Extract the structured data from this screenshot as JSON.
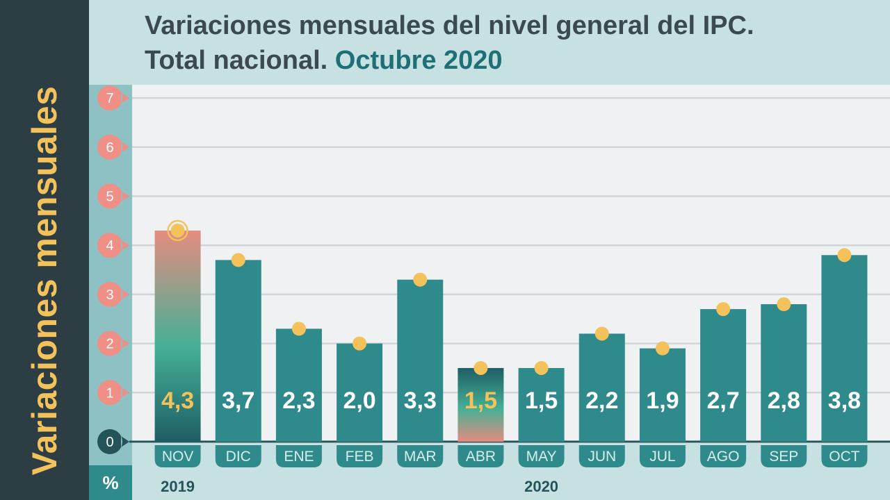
{
  "title": {
    "line1": "Variaciones mensuales del nivel general del IPC.",
    "line2_prefix": "Total nacional.",
    "line2_highlight": "Octubre 2020"
  },
  "side_label": "Variaciones mensuales",
  "unit": "%",
  "colors": {
    "bar": "#2f8a8c",
    "dot": "#f3c25b",
    "tick_bubble": "#ef8f86",
    "highlight_start": "#e58c80",
    "highlight_mid": "#45b095",
    "highlight_end": "#1e5e66"
  },
  "chart_data": {
    "type": "bar",
    "title": "Variaciones mensuales del nivel general del IPC. Total nacional. Octubre 2020",
    "ylabel": "Variaciones mensuales",
    "unit": "%",
    "ylim": [
      0,
      7
    ],
    "yticks": [
      "0",
      "1",
      "2",
      "3",
      "4",
      "5",
      "6",
      "7"
    ],
    "grid": true,
    "categories": [
      "NOV",
      "DIC",
      "ENE",
      "FEB",
      "MAR",
      "ABR",
      "MAY",
      "JUN",
      "JUL",
      "AGO",
      "SEP",
      "OCT"
    ],
    "values": [
      4.3,
      3.7,
      2.3,
      2.0,
      3.3,
      1.5,
      1.5,
      2.2,
      1.9,
      2.7,
      2.8,
      3.8
    ],
    "value_labels": [
      "4,3",
      "3,7",
      "2,3",
      "2,0",
      "3,3",
      "1,5",
      "1,5",
      "2,2",
      "1,9",
      "2,7",
      "2,8",
      "3,8"
    ],
    "highlighted": [
      "NOV",
      "ABR"
    ],
    "year_groups": [
      {
        "label": "2019",
        "categories": [
          "NOV"
        ]
      },
      {
        "label": "2020",
        "categories": [
          "DIC",
          "ENE",
          "FEB",
          "MAR",
          "ABR",
          "MAY",
          "JUN",
          "JUL",
          "AGO",
          "SEP",
          "OCT"
        ]
      }
    ]
  }
}
